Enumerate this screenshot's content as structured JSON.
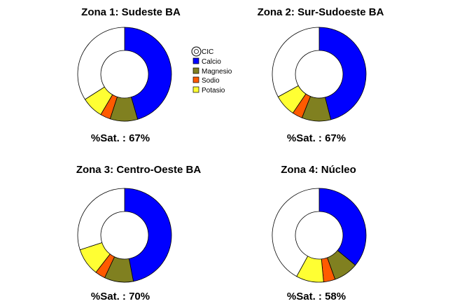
{
  "colors": {
    "CIC": "#ffffff",
    "Calcio": "#0000ff",
    "Magnesio": "#808020",
    "Sodio": "#ff5a00",
    "Potasio": "#ffff33",
    "outline": "#000000"
  },
  "legend": {
    "items": [
      "CIC",
      "Calcio",
      "Magnesio",
      "Sodio",
      "Potasio"
    ]
  },
  "chart_data": [
    {
      "type": "pie",
      "title": "Zona 1: Sudeste BA",
      "saturation_label": "%Sat. : 67%",
      "saturation": 67,
      "categories": [
        "Calcio",
        "Magnesio",
        "Sodio",
        "Potasio",
        "CIC"
      ],
      "values": [
        45.5,
        9.5,
        3.5,
        7.5,
        34
      ]
    },
    {
      "type": "pie",
      "title": "Zona 2: Sur-Sudoeste BA",
      "saturation_label": "%Sat. : 67%",
      "saturation": 67,
      "categories": [
        "Calcio",
        "Magnesio",
        "Sodio",
        "Potasio",
        "CIC"
      ],
      "values": [
        46,
        10,
        3.5,
        7.5,
        33
      ]
    },
    {
      "type": "pie",
      "title": "Zona 3: Centro-Oeste BA",
      "saturation_label": "%Sat. : 70%",
      "saturation": 70,
      "categories": [
        "Calcio",
        "Magnesio",
        "Sodio",
        "Potasio",
        "CIC"
      ],
      "values": [
        47,
        10,
        3.5,
        9.5,
        30
      ]
    },
    {
      "type": "pie",
      "title": "Zona 4: Núcleo",
      "saturation_label": "%Sat. : 58%",
      "saturation": 58,
      "categories": [
        "Calcio",
        "Magnesio",
        "Sodio",
        "Potasio",
        "CIC"
      ],
      "values": [
        36,
        8.5,
        4,
        9.5,
        42
      ]
    }
  ]
}
